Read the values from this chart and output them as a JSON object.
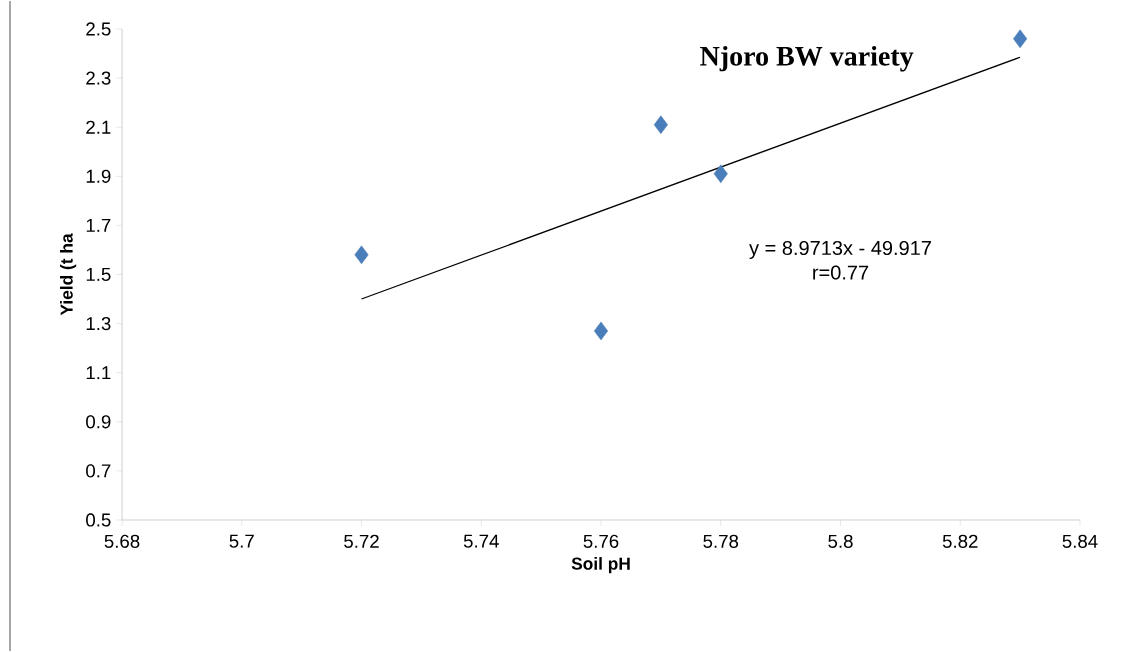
{
  "chart_data": {
    "type": "scatter",
    "title": "Njoro BW  variety",
    "xlabel": "Soil pH",
    "ylabel": "Yield (t ha",
    "annotations": [
      "y = 8.9713x - 49.917",
      "r=0.77"
    ],
    "series": [
      {
        "color": "#4a7ebb",
        "marker": "diamond",
        "x": [
          5.72,
          5.76,
          5.77,
          5.78,
          5.83
        ],
        "values": [
          1.58,
          1.27,
          2.11,
          1.91,
          2.46
        ]
      },
      {
        "type": "line",
        "color": "#000000",
        "marker": "none",
        "line_style": "solid",
        "x": [
          5.72,
          5.83
        ],
        "values": [
          1.4,
          2.385
        ]
      }
    ],
    "xlim": [
      5.68,
      5.84
    ],
    "xticks": [
      5.68,
      5.7,
      5.72,
      5.74,
      5.76,
      5.78,
      5.8,
      5.82,
      5.84
    ],
    "ylim": [
      0.5,
      2.5
    ],
    "yticks": [
      0.5,
      0.7,
      0.9,
      1.1,
      1.3,
      1.5,
      1.7,
      1.9,
      2.1,
      2.3,
      2.5
    ]
  }
}
